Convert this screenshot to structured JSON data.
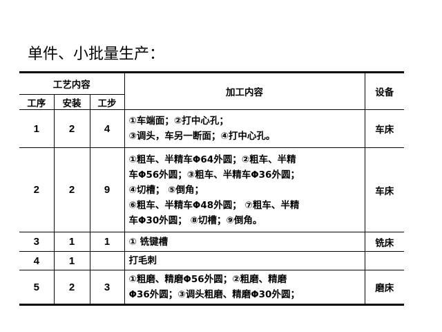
{
  "title": "单件、小批量生产：",
  "header": {
    "group": "工艺内容",
    "process": "工序",
    "setup": "安装",
    "step": "工步",
    "content": "加工内容",
    "equipment": "设备"
  },
  "rows": [
    {
      "process": "1",
      "setup": "2",
      "step": "4",
      "lines": [
        "①车端面；②打中心孔；",
        "③调头，车另一断面；④打中心孔。"
      ],
      "equipment": "车床"
    },
    {
      "process": "2",
      "setup": "2",
      "step": "9",
      "lines": [
        "①粗车、半精车Φ64外圆；②粗车、半精",
        "车Φ56外圆；③粗车、半精车Φ36外圆；",
        "④切槽； ⑤倒角；",
        "⑥粗车、半精车Φ48外圆； ⑦粗车、半精",
        "车Φ30外圆； ⑧切槽；⑨倒角。"
      ],
      "equipment": "车床"
    },
    {
      "process": "3",
      "setup": "1",
      "step": "1",
      "lines": [
        "① 铣键槽"
      ],
      "equipment": "铣床"
    },
    {
      "process": "4",
      "setup": "1",
      "step": "",
      "lines": [
        "打毛刺"
      ],
      "equipment": ""
    },
    {
      "process": "5",
      "setup": "2",
      "step": "3",
      "lines": [
        "①粗磨、精磨Φ56外圆；②粗磨、精磨",
        "Φ36外圆；③调头粗磨、精磨Φ30外圆；"
      ],
      "equipment": "磨床"
    }
  ]
}
